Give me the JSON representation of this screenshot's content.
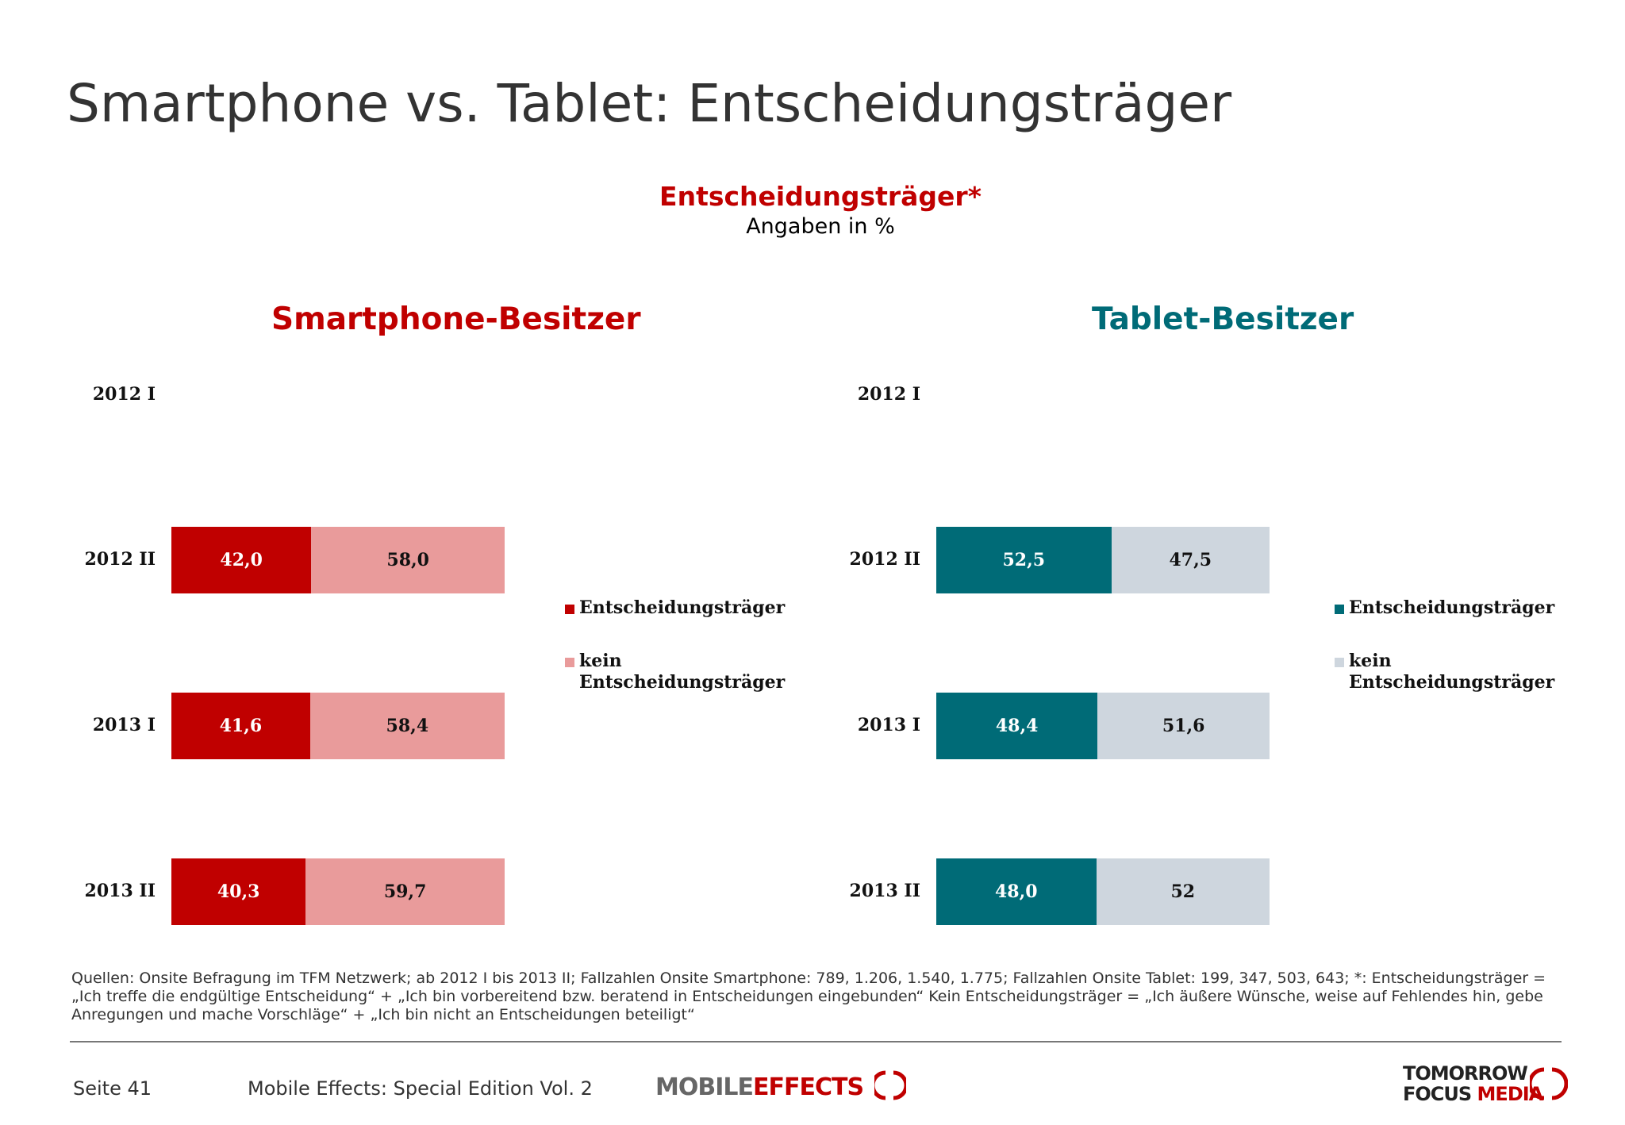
{
  "page": {
    "title": "Smartphone vs. Tablet: Entscheidungsträger",
    "sources": "Quellen: Onsite Befragung im TFM Netzwerk; ab 2012 I bis 2013 II; Fallzahlen Onsite Smartphone: 789, 1.206, 1.540, 1.775; Fallzahlen Onsite Tablet: 199, 347, 503, 643; *: Entscheidungsträger = „Ich treffe die endgültige Entscheidung“ + „Ich bin vorbereitend bzw. beratend in Entscheidungen eingebunden“ Kein Entscheidungsträger = „Ich äußere Wünsche, weise auf Fehlendes hin, gebe Anregungen und mache Vorschläge“ + „Ich bin nicht an Entscheidungen beteiligt“",
    "footer": {
      "page_number": "Seite 41",
      "edition": "Mobile Effects: Special Edition Vol. 2",
      "logo_mobile_1": "MOBILE",
      "logo_mobile_2": "EFFECTS",
      "logo_tfm_1": "TOMORROW",
      "logo_tfm_2a": "FOCUS",
      "logo_tfm_2b": "MEDIA"
    }
  },
  "chart_title": "Entscheidungsträger*",
  "chart_subtitle": "Angaben in %",
  "chart_data": [
    {
      "type": "bar",
      "stacked": true,
      "orientation": "horizontal",
      "title": "Smartphone-Besitzer",
      "categories": [
        "2012 I",
        "2012 II",
        "2013 I",
        "2013 II"
      ],
      "series": [
        {
          "name": "Entscheidungsträger",
          "values": [
            null,
            42.0,
            41.6,
            40.3
          ],
          "labels": [
            "",
            "42,0",
            "41,6",
            "40,3"
          ],
          "color": "#c00000",
          "label_color": "#ffffff"
        },
        {
          "name_1": "kein",
          "name_2": "Entscheidungsträger",
          "values": [
            null,
            58.0,
            58.4,
            59.7
          ],
          "labels": [
            "",
            "58,0",
            "58,4",
            "59,7"
          ],
          "color": "#e99b9b",
          "label_color": "#111111"
        }
      ],
      "xlim": [
        0,
        100
      ],
      "legend_position": "right",
      "title_color": "#c00000"
    },
    {
      "type": "bar",
      "stacked": true,
      "orientation": "horizontal",
      "title": "Tablet-Besitzer",
      "categories": [
        "2012 I",
        "2012 II",
        "2013 I",
        "2013 II"
      ],
      "series": [
        {
          "name": "Entscheidungsträger",
          "values": [
            null,
            52.5,
            48.4,
            48.0
          ],
          "labels": [
            "",
            "52,5",
            "48,4",
            "48,0"
          ],
          "color": "#006b77",
          "label_color": "#ffffff"
        },
        {
          "name_1": "kein",
          "name_2": "Entscheidungsträger",
          "values": [
            null,
            47.5,
            51.6,
            52
          ],
          "labels": [
            "",
            "47,5",
            "51,6",
            "52"
          ],
          "color": "#ced6de",
          "label_color": "#111111"
        }
      ],
      "xlim": [
        0,
        100
      ],
      "legend_position": "right",
      "title_color": "#006b77"
    }
  ]
}
